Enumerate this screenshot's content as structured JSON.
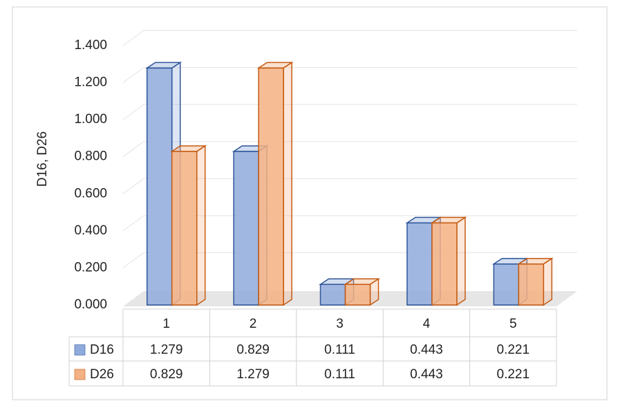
{
  "chart_data": {
    "type": "bar3d",
    "y_label": "D16, D26",
    "categories": [
      "1",
      "2",
      "3",
      "4",
      "5"
    ],
    "series": [
      {
        "name": "D16",
        "color": "#8faadc",
        "values": [
          1.279,
          0.829,
          0.111,
          0.443,
          0.221
        ]
      },
      {
        "name": "D26",
        "color": "#f4b183",
        "values": [
          0.829,
          1.279,
          0.111,
          0.443,
          0.221
        ]
      }
    ],
    "ylim": [
      0,
      1.4
    ],
    "yticks": [
      {
        "value": 0,
        "label": "0.000"
      },
      {
        "value": 0.2,
        "label": "0.200"
      },
      {
        "value": 0.4,
        "label": "0.400"
      },
      {
        "value": 0.6,
        "label": "0.600"
      },
      {
        "value": 0.8,
        "label": "0.800"
      },
      {
        "value": 1.0,
        "label": "1.000"
      },
      {
        "value": 1.2,
        "label": "1.200"
      },
      {
        "value": 1.4,
        "label": "1.400"
      }
    ],
    "grid": true,
    "data_table": true
  }
}
